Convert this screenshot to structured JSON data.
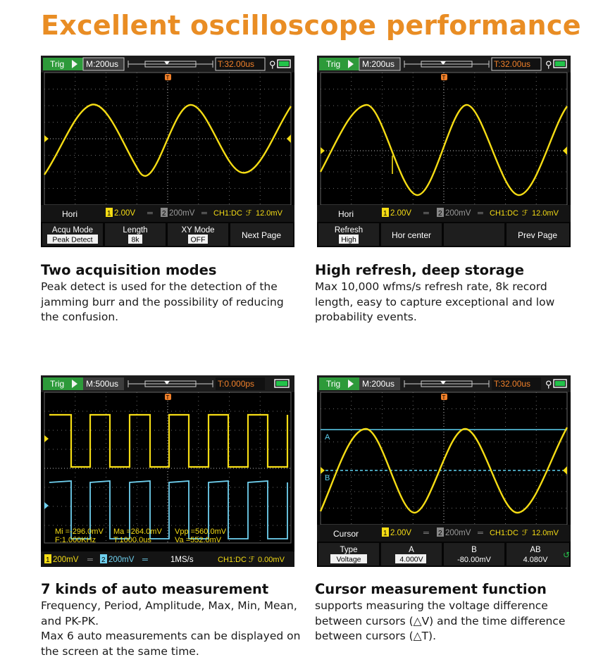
{
  "headline": "Excellent oscilloscope performance",
  "colors": {
    "headline": "#e98d24",
    "ch1_trace": "#f5dc14",
    "ch2_trace": "#6fd0ef",
    "trigger_marker": "#f0802a",
    "top_bar_bg": "#2d9a3a",
    "timebase_bg": "#3d3d3d"
  },
  "screens": [
    {
      "trig": "Trig",
      "timebase": "M:200us",
      "trigger_time": "T:32.00us",
      "status": [
        "Hori",
        "2.00V",
        "200mV",
        "CH1:DC",
        "12.0mV"
      ],
      "menu": [
        {
          "label": "Acqu Mode",
          "value": "Peak Detect"
        },
        {
          "label": "Length",
          "value": "8k"
        },
        {
          "label": "XY Mode",
          "value": "OFF"
        },
        {
          "label": "Next Page",
          "value": ""
        }
      ]
    },
    {
      "trig": "Trig",
      "timebase": "M:200us",
      "trigger_time": "T:32.00us",
      "status": [
        "Hori",
        "2.00V",
        "200mV",
        "CH1:DC",
        "12.0mV"
      ],
      "menu": [
        {
          "label": "Refresh",
          "value": "High"
        },
        {
          "label": "Hor center",
          "value": ""
        },
        {
          "label": "",
          "value": ""
        },
        {
          "label": "Prev Page",
          "value": ""
        }
      ]
    },
    {
      "trig": "Trig",
      "timebase": "M:500us",
      "trigger_time": "T:0.000ps",
      "measurements": [
        "Mi =-296.0mV",
        "Ma =264.0mV",
        "Vpp =560.0mV",
        "F:1.000KHz",
        "T:1000.0us",
        "Va =552.0mV"
      ],
      "bottom": [
        "200mV",
        "200mV",
        "1MS/s",
        "CH1:DC",
        "0.00mV"
      ]
    },
    {
      "trig": "Trig",
      "timebase": "M:200us",
      "trigger_time": "T:32.00us",
      "status": [
        "Cursor",
        "2.00V",
        "200mV",
        "CH1:DC",
        "12.0mV"
      ],
      "cursor_labels": [
        "A",
        "B"
      ],
      "menu": [
        {
          "label": "Type",
          "value": "Voltage"
        },
        {
          "label": "A",
          "value": "4.000V"
        },
        {
          "label": "B",
          "value": "-80.00mV"
        },
        {
          "label": "AB",
          "value": "4.080V"
        }
      ]
    }
  ],
  "features": [
    {
      "title": "Two acquisition  modes",
      "text": "Peak detect is used for the detection of the\njamming burr and the possibility of reducing\nthe confusion."
    },
    {
      "title": "High refresh, deep storage",
      "text": "Max 10,000 wfms/s refresh rate, 8k record\nlength, easy to capture exceptional and low\nprobability events."
    },
    {
      "title": "7 kinds of auto measurement",
      "text": "Frequency, Period, Amplitude, Max, Min, Mean,\nand PK-PK.\nMax 6 auto measurements can be displayed on\nthe screen at the same time."
    },
    {
      "title": "Cursor measurement function",
      "text": " supports measuring the voltage difference\nbetween cursors (△V) and the time difference\nbetween cursors (△T)."
    }
  ]
}
